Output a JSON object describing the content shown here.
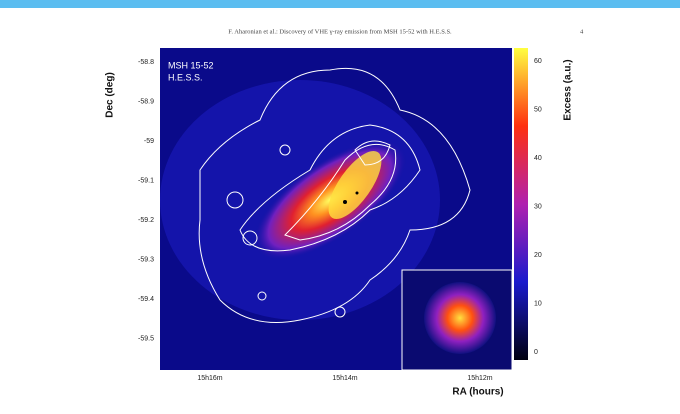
{
  "header": {
    "running_title": "F. Aharonian et al.: Discovery of VHE γ-ray emission from MSH 15-52 with H.E.S.S.",
    "page_number": "4"
  },
  "figure": {
    "labels": [
      "MSH 15-52",
      "H.E.S.S."
    ],
    "y_axis": {
      "title": "Dec (deg)",
      "ticks": [
        "-58.8",
        "-58.9",
        "-59",
        "-59.1",
        "-59.2",
        "-59.3",
        "-59.4",
        "-59.5"
      ]
    },
    "x_axis": {
      "title": "RA (hours)",
      "ticks": [
        "15h16m",
        "15h14m",
        "15h12m"
      ]
    },
    "colorbar": {
      "title": "Excess (a.u.)",
      "ticks": [
        "0",
        "10",
        "20",
        "30",
        "40",
        "50",
        "60"
      ]
    }
  }
}
